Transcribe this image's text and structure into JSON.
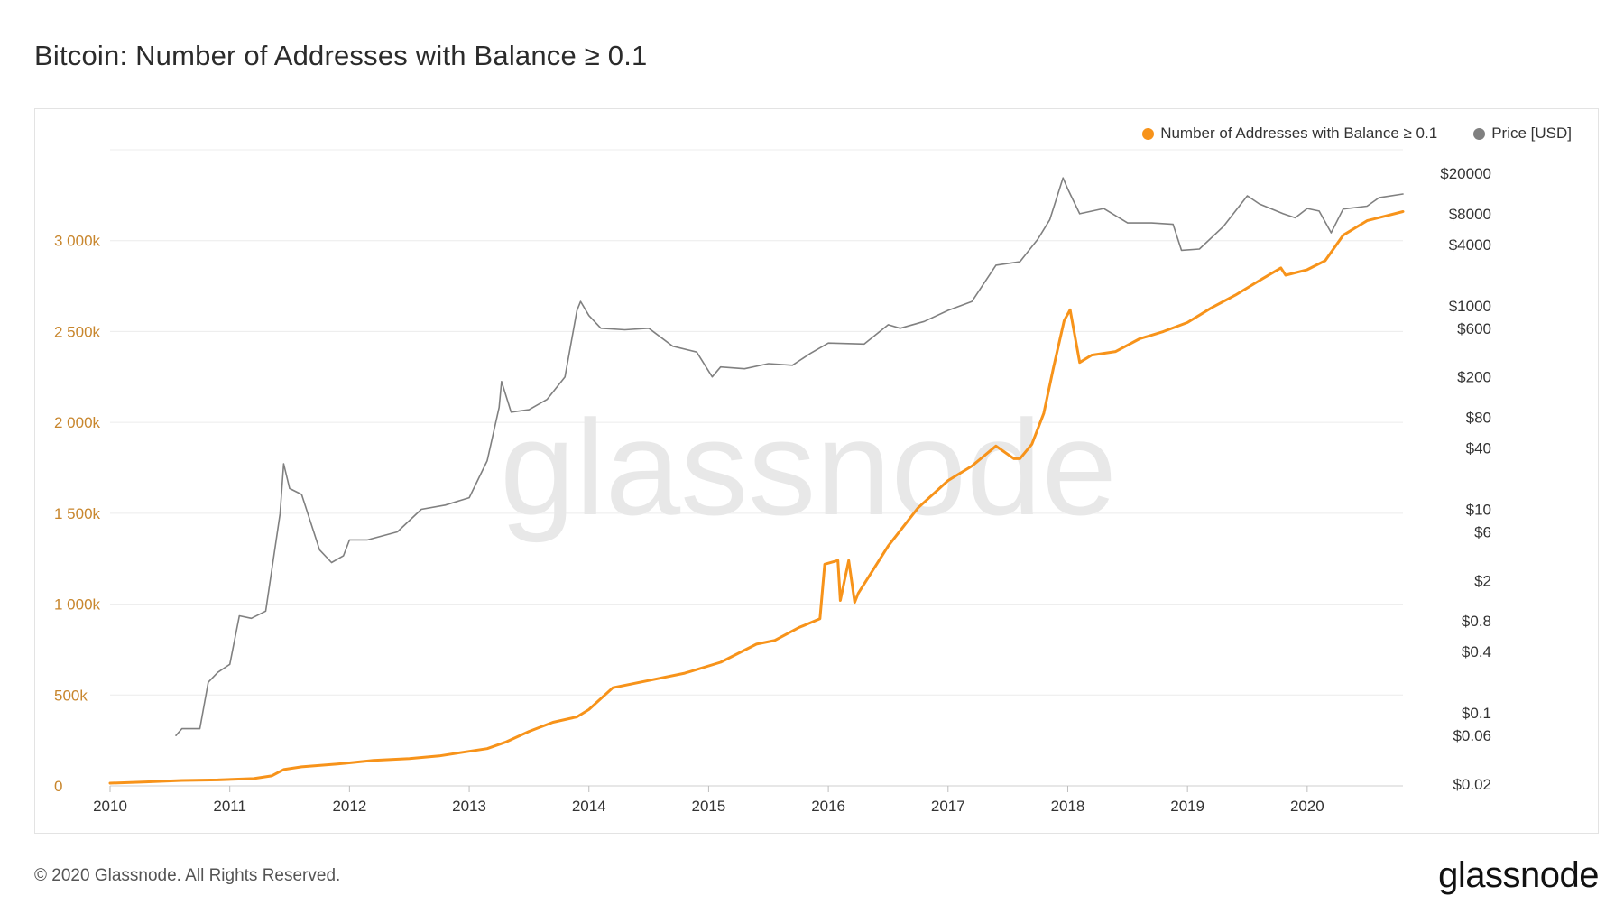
{
  "header": {
    "title": "Bitcoin: Number of Addresses with Balance ≥ 0.1"
  },
  "legend": {
    "items": [
      {
        "label": "Number of Addresses with Balance ≥ 0.1",
        "color": "#f7931a"
      },
      {
        "label": "Price [USD]",
        "color": "#808080"
      }
    ]
  },
  "watermark": "glassnode",
  "footer": {
    "copyright": "© 2020 Glassnode. All Rights Reserved.",
    "logo": "glassnode"
  },
  "chart_data": {
    "type": "line",
    "title": "Bitcoin: Number of Addresses with Balance ≥ 0.1",
    "x_range": [
      2010.0,
      2020.8
    ],
    "x_ticks": [
      "2010",
      "2011",
      "2012",
      "2013",
      "2014",
      "2015",
      "2016",
      "2017",
      "2018",
      "2019",
      "2020"
    ],
    "y_left": {
      "range": [
        0,
        3500000
      ],
      "ticks": [
        0,
        500000,
        1000000,
        1500000,
        2000000,
        2500000,
        3000000
      ],
      "tick_labels": [
        "0",
        "500k",
        "1 000k",
        "1 500k",
        "2 000k",
        "2 500k",
        "3 000k"
      ],
      "color": "#c8862d"
    },
    "y_right": {
      "scale": "log",
      "range": [
        0.02,
        20000
      ],
      "ticks": [
        20000,
        8000,
        4000,
        1000,
        600,
        200,
        80,
        40,
        10,
        6,
        2,
        0.8,
        0.4,
        0.1,
        0.06,
        0.02
      ],
      "tick_labels": [
        "$20000",
        "$8000",
        "$4000",
        "$1000",
        "$600",
        "$200",
        "$80",
        "$40",
        "$10",
        "$6",
        "$2",
        "$0.8",
        "$0.4",
        "$0.1",
        "$0.06",
        "$0.02"
      ]
    },
    "grid": true,
    "legend_position": "top-right",
    "series": [
      {
        "name": "Number of Addresses with Balance ≥ 0.1",
        "axis": "left",
        "color": "#f7931a",
        "x": [
          2010.0,
          2010.3,
          2010.6,
          2010.9,
          2011.2,
          2011.35,
          2011.45,
          2011.6,
          2011.9,
          2012.2,
          2012.5,
          2012.75,
          2012.95,
          2013.15,
          2013.3,
          2013.5,
          2013.7,
          2013.9,
          2014.0,
          2014.2,
          2014.5,
          2014.8,
          2015.1,
          2015.4,
          2015.55,
          2015.75,
          2015.93,
          2015.97,
          2016.08,
          2016.1,
          2016.17,
          2016.22,
          2016.25,
          2016.5,
          2016.75,
          2017.0,
          2017.2,
          2017.4,
          2017.55,
          2017.6,
          2017.7,
          2017.8,
          2017.88,
          2017.97,
          2018.02,
          2018.1,
          2018.2,
          2018.4,
          2018.6,
          2018.8,
          2019.0,
          2019.2,
          2019.4,
          2019.6,
          2019.78,
          2019.82,
          2020.0,
          2020.15,
          2020.3,
          2020.5,
          2020.8
        ],
        "values": [
          15000,
          22000,
          30000,
          33000,
          40000,
          55000,
          90000,
          105000,
          120000,
          140000,
          150000,
          165000,
          185000,
          205000,
          240000,
          300000,
          350000,
          380000,
          420000,
          540000,
          580000,
          620000,
          680000,
          780000,
          800000,
          870000,
          920000,
          1220000,
          1240000,
          1020000,
          1240000,
          1010000,
          1060000,
          1320000,
          1530000,
          1680000,
          1760000,
          1870000,
          1800000,
          1800000,
          1880000,
          2050000,
          2300000,
          2560000,
          2620000,
          2330000,
          2370000,
          2390000,
          2460000,
          2500000,
          2550000,
          2630000,
          2700000,
          2780000,
          2850000,
          2810000,
          2840000,
          2890000,
          3030000,
          3110000,
          3160000
        ]
      },
      {
        "name": "Price [USD]",
        "axis": "right",
        "color": "#808080",
        "x": [
          2010.55,
          2010.6,
          2010.75,
          2010.82,
          2010.9,
          2011.0,
          2011.08,
          2011.18,
          2011.3,
          2011.42,
          2011.45,
          2011.5,
          2011.6,
          2011.75,
          2011.85,
          2011.95,
          2012.0,
          2012.15,
          2012.4,
          2012.6,
          2012.8,
          2013.0,
          2013.15,
          2013.25,
          2013.27,
          2013.35,
          2013.5,
          2013.65,
          2013.8,
          2013.9,
          2013.93,
          2014.0,
          2014.1,
          2014.3,
          2014.5,
          2014.7,
          2014.9,
          2015.03,
          2015.1,
          2015.3,
          2015.5,
          2015.7,
          2015.85,
          2016.0,
          2016.3,
          2016.5,
          2016.6,
          2016.8,
          2017.0,
          2017.2,
          2017.4,
          2017.6,
          2017.75,
          2017.85,
          2017.96,
          2018.0,
          2018.1,
          2018.3,
          2018.5,
          2018.7,
          2018.88,
          2018.95,
          2019.1,
          2019.3,
          2019.5,
          2019.6,
          2019.8,
          2019.9,
          2020.0,
          2020.1,
          2020.2,
          2020.3,
          2020.5,
          2020.6,
          2020.8
        ],
        "values": [
          0.06,
          0.07,
          0.07,
          0.2,
          0.25,
          0.3,
          0.9,
          0.85,
          1.0,
          9,
          28,
          16,
          14,
          4,
          3,
          3.5,
          5,
          5,
          6,
          10,
          11,
          13,
          30,
          100,
          180,
          90,
          95,
          120,
          200,
          900,
          1100,
          800,
          600,
          580,
          600,
          400,
          350,
          200,
          250,
          240,
          270,
          260,
          340,
          430,
          420,
          650,
          600,
          700,
          900,
          1100,
          2500,
          2700,
          4500,
          7000,
          18000,
          14000,
          8000,
          9000,
          6500,
          6500,
          6300,
          3500,
          3600,
          6000,
          12000,
          10000,
          8000,
          7300,
          9000,
          8500,
          5200,
          8900,
          9500,
          11500,
          12500
        ]
      }
    ]
  }
}
